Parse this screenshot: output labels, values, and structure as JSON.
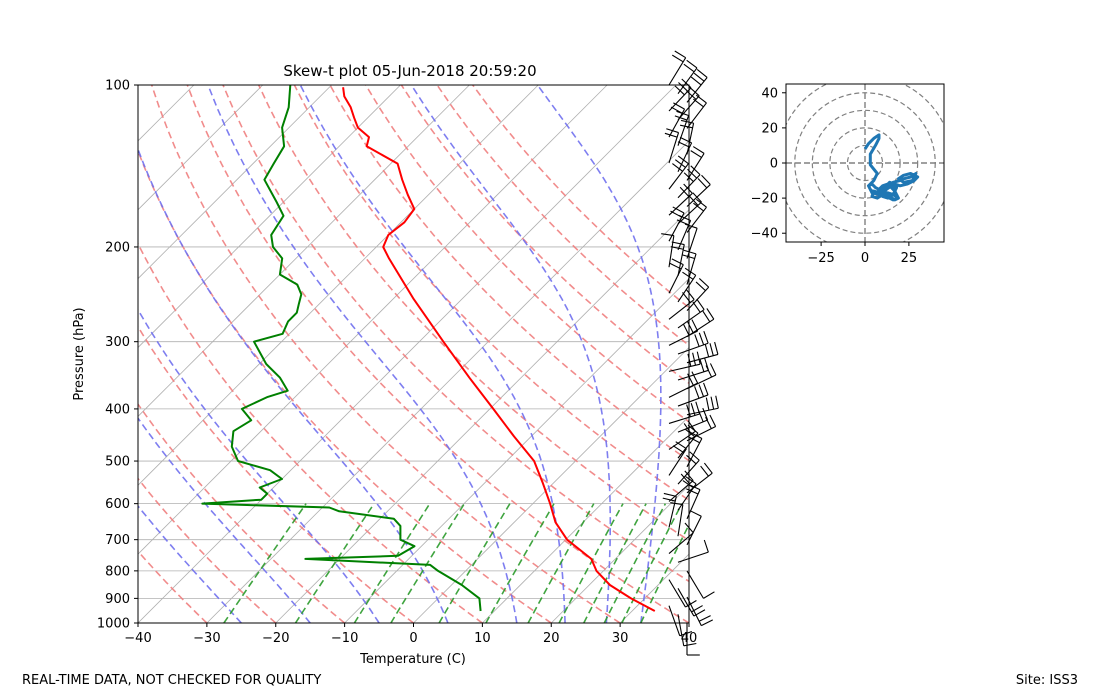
{
  "chart_data": [
    {
      "type": "line",
      "title": "Skew-t plot 05-Jun-2018 20:59:20",
      "xlabel": "Temperature (C)",
      "ylabel": "Pressure (hPa)",
      "xlim": [
        -40,
        40
      ],
      "ylim": [
        1000,
        100
      ],
      "yscale": "log",
      "skew": "isotherms slanted 45°",
      "x_ticks": [
        -40,
        -30,
        -20,
        -10,
        0,
        10,
        20,
        30,
        40
      ],
      "x_tick_labels": [
        "−40",
        "−30",
        "−20",
        "−10",
        "0",
        "10",
        "20",
        "30",
        "40"
      ],
      "y_ticks": [
        1000,
        900,
        800,
        700,
        600,
        500,
        400,
        300,
        200,
        100
      ],
      "y_tick_labels": [
        "1000",
        "900",
        "800",
        "700",
        "600",
        "500",
        "400",
        "300",
        "200",
        "100"
      ],
      "grid": true,
      "colors": {
        "temperature": "#ff0000",
        "dewpoint": "#008000",
        "isotherms": "#b0b0b0",
        "dry_adiabats": "#f08080",
        "moist_adiabats": "#7070ee",
        "mixing_ratio": "#2a9a2a",
        "wind_barbs": "#000000"
      },
      "series": [
        {
          "key": "temperature",
          "pressure": [
            950,
            900,
            850,
            800,
            760,
            700,
            650,
            600,
            550,
            500,
            450,
            400,
            350,
            300,
            250,
            210,
            200,
            190,
            180,
            170,
            160,
            150,
            140,
            130,
            125,
            120,
            115,
            110,
            105,
            101
          ],
          "values": [
            33.3,
            28.0,
            23.0,
            19.0,
            16.5,
            10.2,
            6.0,
            2.5,
            -1.5,
            -6.0,
            -12.5,
            -19.5,
            -27.5,
            -36.5,
            -47.0,
            -56.5,
            -59.0,
            -60.0,
            -59.5,
            -60.0,
            -63.0,
            -66.0,
            -69.0,
            -76.0,
            -77.0,
            -80.0,
            -82.0,
            -84.0,
            -86.5,
            -88.0
          ]
        },
        {
          "key": "dewpoint",
          "pressure": [
            950,
            900,
            850,
            800,
            780,
            760,
            750,
            720,
            700,
            660,
            640,
            620,
            610,
            600,
            590,
            575,
            560,
            540,
            520,
            500,
            470,
            440,
            420,
            400,
            380,
            370,
            350,
            330,
            300,
            290,
            275,
            265,
            255,
            245,
            235,
            225,
            210,
            200,
            190,
            175,
            165,
            150,
            140,
            130,
            120,
            110,
            100
          ],
          "values": [
            8.0,
            6.0,
            1.5,
            -4.0,
            -6.0,
            -25.0,
            -12.0,
            -11.0,
            -14.0,
            -16.0,
            -18.0,
            -27.0,
            -29.0,
            -48.0,
            -40.0,
            -40.0,
            -42.0,
            -40.0,
            -43.0,
            -49.0,
            -52.0,
            -54.0,
            -53.0,
            -56.0,
            -54.0,
            -52.0,
            -55.0,
            -59.0,
            -64.0,
            -61.0,
            -62.0,
            -62.0,
            -63.0,
            -64.0,
            -66.0,
            -70.0,
            -72.0,
            -75.0,
            -77.0,
            -78.0,
            -81.0,
            -86.0,
            -87.0,
            -88.0,
            -91.0,
            -93.0,
            -96.0
          ]
        }
      ]
    },
    {
      "type": "scatter",
      "name": "hodograph",
      "xlim": [
        -45,
        45
      ],
      "ylim": [
        -45,
        45
      ],
      "x_ticks": [
        -25,
        0,
        25
      ],
      "x_tick_labels": [
        "−25",
        "0",
        "25"
      ],
      "y_ticks": [
        40,
        20,
        0,
        -20,
        -40
      ],
      "y_tick_labels": [
        "40",
        "20",
        "0",
        "−20",
        "−40"
      ],
      "rings": [
        10,
        20,
        30,
        40,
        50
      ],
      "colors": {
        "trace": "#1f77b4",
        "rings": "#808080"
      },
      "u": [
        0,
        2,
        5,
        8,
        8,
        6,
        3,
        3,
        7,
        5,
        2,
        4,
        8,
        11,
        15,
        18,
        16,
        13,
        10,
        12,
        16,
        20,
        22,
        26,
        29,
        27,
        22,
        19,
        22,
        26,
        30,
        28,
        24,
        20,
        17,
        14,
        12,
        10,
        8,
        5,
        3,
        2,
        4,
        6,
        8,
        10,
        13,
        15,
        17,
        19,
        16,
        12,
        8,
        5,
        4,
        7,
        10,
        13,
        16,
        19,
        17,
        14,
        11
      ],
      "v": [
        8,
        11,
        14,
        16,
        14,
        10,
        5,
        -1,
        -6,
        -10,
        -13,
        -17,
        -18,
        -16,
        -13,
        -14,
        -18,
        -20,
        -19,
        -15,
        -11,
        -10,
        -9,
        -8,
        -6,
        -10,
        -11,
        -9,
        -7,
        -6,
        -8,
        -10,
        -12,
        -13,
        -12,
        -11,
        -13,
        -15,
        -16,
        -17,
        -15,
        -13,
        -12,
        -14,
        -15,
        -13,
        -12,
        -14,
        -16,
        -20,
        -21,
        -19,
        -17,
        -16,
        -19,
        -20,
        -18,
        -17,
        -18,
        -20,
        -21,
        -19,
        -18
      ]
    }
  ],
  "footer": {
    "left": "REAL-TIME DATA, NOT CHECKED FOR QUALITY",
    "right": "Site: ISS3"
  }
}
